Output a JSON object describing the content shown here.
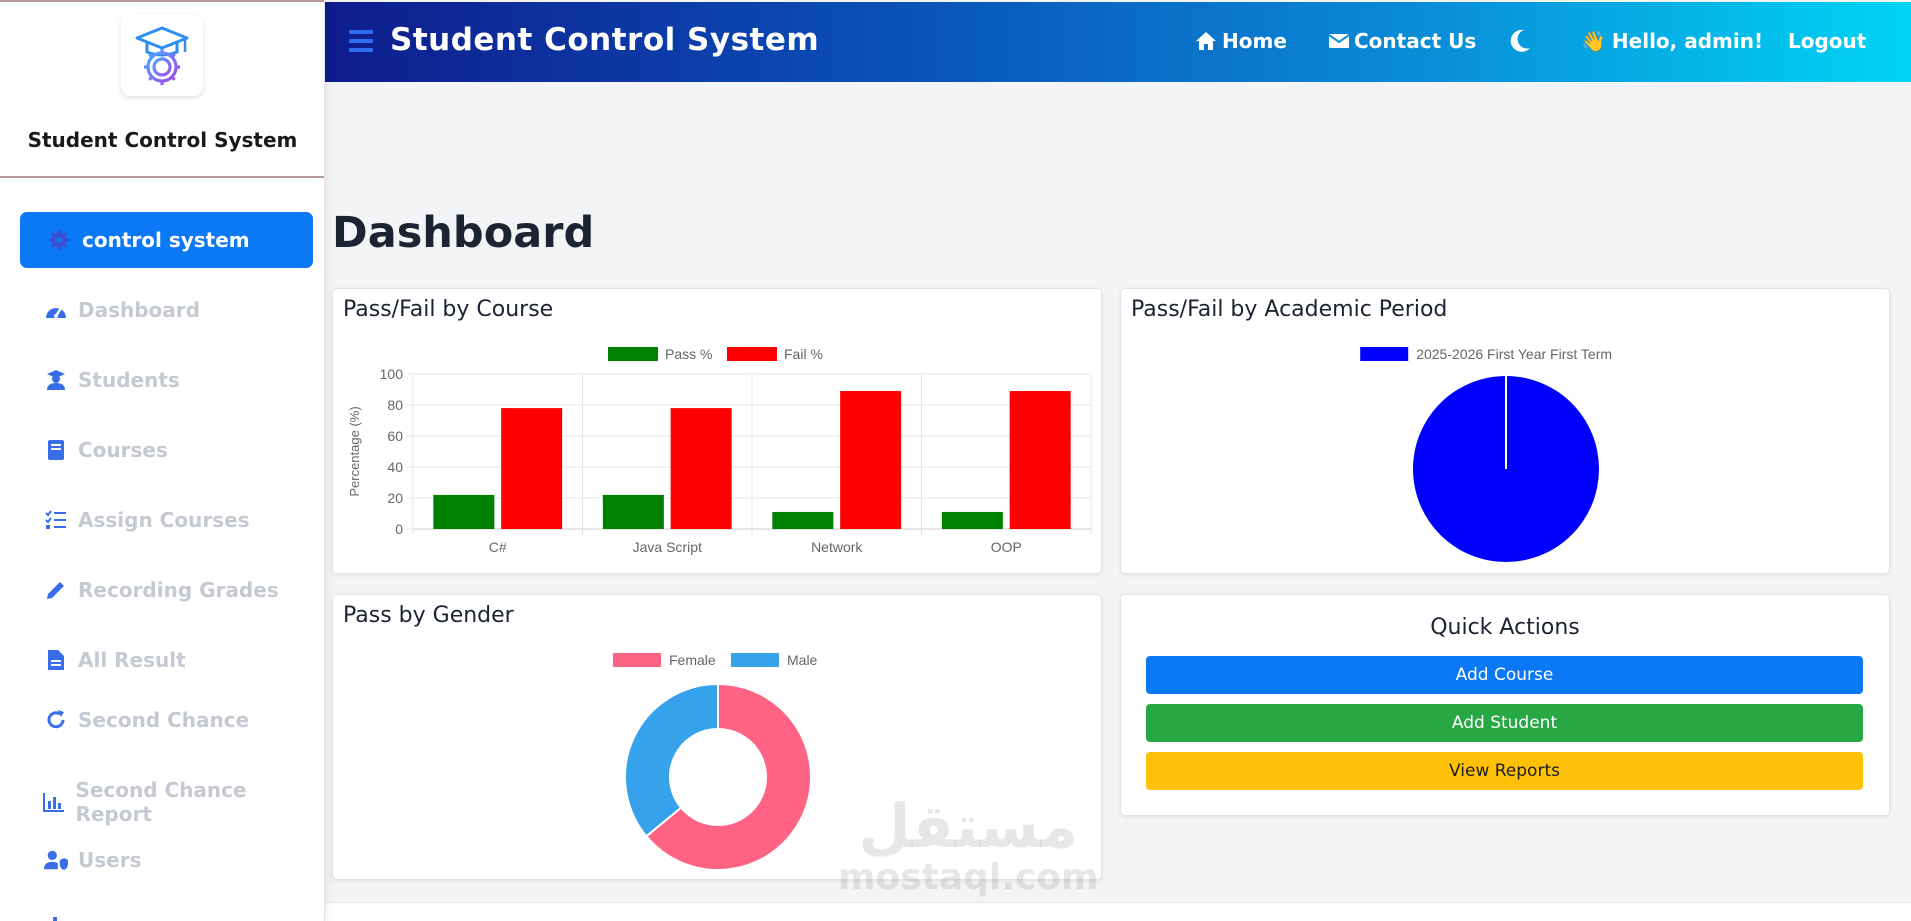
{
  "sidebar": {
    "brand": "Student Control System",
    "active_item": {
      "label": "control system",
      "icon": "gear-icon"
    },
    "items": [
      {
        "label": "Dashboard",
        "icon": "gauge-icon"
      },
      {
        "label": "Students",
        "icon": "student-icon"
      },
      {
        "label": "Courses",
        "icon": "book-icon"
      },
      {
        "label": "Assign Courses",
        "icon": "list-check-icon"
      },
      {
        "label": "Recording Grades",
        "icon": "pencil-icon"
      },
      {
        "label": "All Result",
        "icon": "file-icon"
      },
      {
        "label": "Second Chance",
        "icon": "redo-icon"
      },
      {
        "label": "Second Chance Report",
        "icon": "bar-chart-icon"
      },
      {
        "label": "Users",
        "icon": "user-shield-icon"
      }
    ]
  },
  "header": {
    "title": "Student Control System",
    "home": "Home",
    "contact": "Contact Us",
    "greeting": "Hello, admin!",
    "greeting_emoji": "👋",
    "logout": "Logout"
  },
  "main": {
    "page_title": "Dashboard",
    "quick_actions": {
      "title": "Quick Actions",
      "add_course": "Add Course",
      "add_student": "Add Student",
      "view_reports": "View Reports"
    }
  },
  "colors": {
    "accent": "#0b78f5",
    "pass": "#008000",
    "fail": "#ff0000",
    "period": "#0000ff",
    "female": "#ff6384",
    "male": "#36a2eb",
    "success": "#28a745",
    "warning": "#ffc107"
  },
  "watermark": {
    "line1": "مستقل",
    "line2": "mostaql.com"
  },
  "chart_data": [
    {
      "type": "bar",
      "title": "Pass/Fail by Course",
      "categories": [
        "C#",
        "Java Script",
        "Network",
        "OOP"
      ],
      "series": [
        {
          "name": "Pass %",
          "values": [
            22,
            22,
            11,
            11
          ]
        },
        {
          "name": "Fail %",
          "values": [
            78,
            78,
            89,
            89
          ]
        }
      ],
      "ylabel": "Percentage (%)",
      "ylim": [
        0,
        100
      ],
      "yticks": [
        0,
        20,
        40,
        60,
        80,
        100
      ],
      "legend": "top",
      "grid": true
    },
    {
      "type": "pie",
      "title": "Pass/Fail by Academic Period",
      "labels": [
        "2025-2026 First Year First Term"
      ],
      "values": [
        100
      ],
      "legend": "top"
    },
    {
      "type": "pie",
      "subtype": "doughnut",
      "title": "Pass by Gender",
      "labels": [
        "Female",
        "Male"
      ],
      "values": [
        64,
        36
      ],
      "legend": "top"
    }
  ]
}
